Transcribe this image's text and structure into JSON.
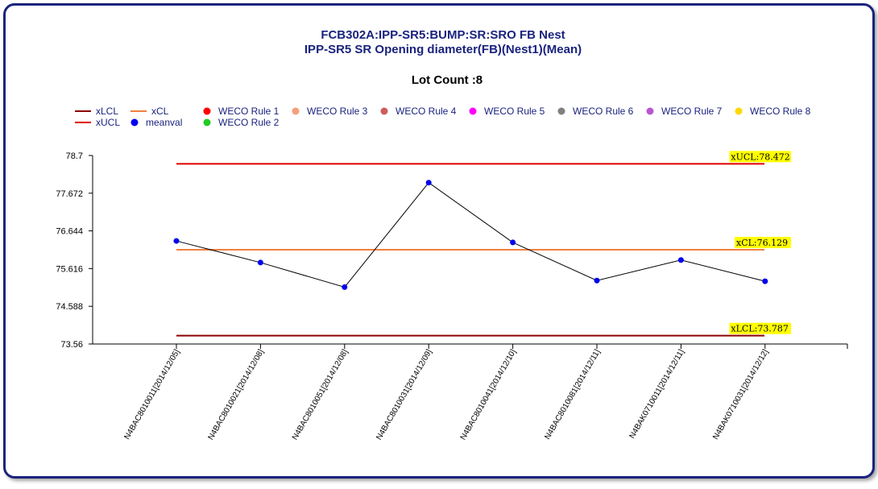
{
  "chart_data": {
    "type": "line",
    "title": "FCB302A:IPP-SR5:BUMP:SR:SRO FB Nest",
    "subtitle": "IPP-SR5 SR Opening diameter(FB)(Nest1)(Mean)",
    "lot_count_label": "Lot Count :8",
    "categories": [
      "N4BAC8010011[2014/12/05]",
      "N4BAC8010021[2014/12/08]",
      "N4BAC8010051[2014/12/08]",
      "N4BAC8010031[2014/12/09]",
      "N4BAC8010041[2014/12/10]",
      "N4BAC8010081[2014/12/11]",
      "N4BAK0710011[2014/12/11]",
      "N4BAK0710031[2014/12/12]"
    ],
    "series": [
      {
        "name": "meanval",
        "values": [
          76.37,
          75.78,
          75.11,
          77.96,
          76.33,
          75.29,
          75.85,
          75.27
        ]
      }
    ],
    "control_limits": {
      "xUCL": 78.472,
      "xCL": 76.129,
      "xLCL": 73.787
    },
    "limit_labels": {
      "xUCL": "xUCL:78.472",
      "xCL": "xCL:76.129",
      "xLCL": "xLCL:73.787"
    },
    "y_ticks": [
      "78.7",
      "77.672",
      "76.644",
      "75.616",
      "74.588",
      "73.56"
    ],
    "ylim": [
      73.56,
      78.7
    ],
    "legend": [
      {
        "label": "xLCL",
        "kind": "line",
        "color": "#8b0000"
      },
      {
        "label": "xCL",
        "kind": "line",
        "color": "#f08040"
      },
      {
        "label": "WECO Rule 1",
        "kind": "dot",
        "color": "#ff0000"
      },
      {
        "label": "WECO Rule 3",
        "kind": "dot",
        "color": "#f4a07a"
      },
      {
        "label": "WECO Rule 4",
        "kind": "dot",
        "color": "#cd5c5c"
      },
      {
        "label": "WECO Rule 5",
        "kind": "dot",
        "color": "#ff00ff"
      },
      {
        "label": "WECO Rule 6",
        "kind": "dot",
        "color": "#808080"
      },
      {
        "label": "WECO Rule 7",
        "kind": "dot",
        "color": "#ba55d3"
      },
      {
        "label": "WECO Rule 8",
        "kind": "dot",
        "color": "#ffd700"
      },
      {
        "label": "xUCL",
        "kind": "line",
        "color": "#e00000"
      },
      {
        "label": "meanval",
        "kind": "dot",
        "color": "#0000ee"
      },
      {
        "label": "WECO Rule 2",
        "kind": "dot",
        "color": "#22cc22"
      }
    ],
    "colors": {
      "xUCL": "#e00000",
      "xCL": "#f08040",
      "xLCL": "#8b0000",
      "meanval_point": "#0000ee",
      "meanval_line": "#000000",
      "label_bg": "#ffff00"
    }
  }
}
